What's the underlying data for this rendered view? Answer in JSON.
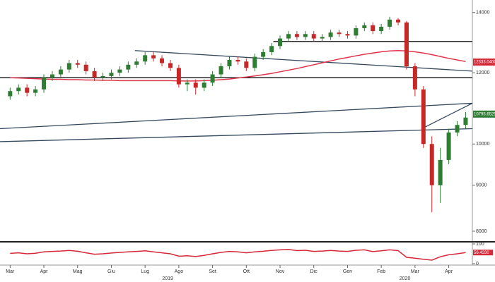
{
  "chart_data": {
    "type": "candlestick",
    "log_scale": true,
    "xlim": [
      -0.3,
      13.7
    ],
    "ylim": [
      7800,
      14300
    ],
    "xticks": [
      {
        "value": 0,
        "label": "Mar"
      },
      {
        "value": 1,
        "label": "Apr"
      },
      {
        "value": 2,
        "label": "Mag"
      },
      {
        "value": 3,
        "label": "Giu"
      },
      {
        "value": 4,
        "label": "Lug"
      },
      {
        "value": 5,
        "label": "Ago"
      },
      {
        "value": 6,
        "label": "Set"
      },
      {
        "value": 7,
        "label": "Ott"
      },
      {
        "value": 8,
        "label": "Nov"
      },
      {
        "value": 9,
        "label": "Dic"
      },
      {
        "value": 10,
        "label": "Gen"
      },
      {
        "value": 11,
        "label": "Feb"
      },
      {
        "value": 12,
        "label": "Mar"
      },
      {
        "value": 13,
        "label": "Apr"
      }
    ],
    "year_labels": [
      {
        "value": 4.67,
        "label": "2019"
      },
      {
        "value": 11.7,
        "label": "2020"
      }
    ],
    "yticks": [
      8000,
      9000,
      10000,
      12000,
      14000
    ],
    "up_color": "#2e7d32",
    "down_color": "#c62828",
    "x": [
      0,
      0.25,
      0.5,
      0.75,
      1,
      1.25,
      1.5,
      1.75,
      2,
      2.25,
      2.5,
      2.75,
      3,
      3.25,
      3.5,
      3.75,
      4,
      4.25,
      4.5,
      4.75,
      5,
      5.25,
      5.5,
      5.75,
      6,
      6.25,
      6.5,
      6.75,
      7,
      7.25,
      7.5,
      7.75,
      8,
      8.25,
      8.5,
      8.75,
      9,
      9.25,
      9.5,
      9.75,
      10,
      10.25,
      10.5,
      10.75,
      11,
      11.25,
      11.5,
      11.75,
      12,
      12.25,
      12.5,
      12.75,
      13,
      13.25,
      13.5
    ],
    "open": [
      11300,
      11450,
      11550,
      11400,
      11500,
      11850,
      11950,
      12100,
      12300,
      12250,
      12050,
      11850,
      11900,
      12000,
      12100,
      12250,
      12350,
      12550,
      12450,
      12300,
      12150,
      11650,
      11700,
      11550,
      11700,
      11950,
      12200,
      12400,
      12350,
      12150,
      12500,
      12650,
      12850,
      13100,
      13250,
      13150,
      13250,
      13100,
      13150,
      13300,
      13250,
      13200,
      13450,
      13550,
      13350,
      13500,
      13750,
      13650,
      12200,
      11500,
      10000,
      9000,
      9600,
      10300,
      10500
    ],
    "high": [
      11550,
      11650,
      11650,
      11600,
      11950,
      12050,
      12200,
      12400,
      12400,
      12350,
      12150,
      12000,
      12100,
      12200,
      12350,
      12450,
      12650,
      12650,
      12550,
      12400,
      12250,
      11800,
      11800,
      11800,
      12050,
      12300,
      12500,
      12500,
      12450,
      12600,
      12750,
      12950,
      13200,
      13350,
      13350,
      13350,
      13350,
      13250,
      13400,
      13400,
      13350,
      13550,
      13650,
      13650,
      13600,
      13850,
      13800,
      13700,
      12300,
      11600,
      10200,
      9900,
      10400,
      10600,
      10850
    ],
    "low": [
      11200,
      11350,
      11300,
      11300,
      11400,
      11750,
      11850,
      12000,
      12150,
      11950,
      11750,
      11750,
      11800,
      11900,
      12000,
      12150,
      12250,
      12350,
      12200,
      12050,
      11550,
      11450,
      11350,
      11450,
      11600,
      11850,
      12100,
      12250,
      12050,
      12050,
      12400,
      12550,
      12750,
      13000,
      13050,
      13050,
      13000,
      13000,
      13050,
      13150,
      13100,
      13100,
      13350,
      13250,
      13250,
      13400,
      13550,
      12100,
      11300,
      9900,
      8400,
      8600,
      9500,
      10200,
      10400
    ],
    "close": [
      11450,
      11550,
      11400,
      11500,
      11850,
      11950,
      12100,
      12300,
      12250,
      12050,
      11850,
      11900,
      12000,
      12100,
      12250,
      12350,
      12550,
      12450,
      12300,
      12150,
      11650,
      11700,
      11550,
      11700,
      11950,
      12200,
      12400,
      12350,
      12150,
      12500,
      12650,
      12850,
      13100,
      13250,
      13150,
      13250,
      13100,
      13150,
      13300,
      13250,
      13200,
      13450,
      13550,
      13350,
      13500,
      13750,
      13650,
      12200,
      11500,
      10000,
      9000,
      9600,
      10300,
      10500,
      10700
    ],
    "ma": {
      "color": "#e0344a",
      "values": [
        11850,
        11840,
        11830,
        11820,
        11810,
        11800,
        11800,
        11790,
        11790,
        11780,
        11780,
        11770,
        11770,
        11760,
        11760,
        11760,
        11760,
        11760,
        11760,
        11760,
        11750,
        11750,
        11750,
        11760,
        11770,
        11790,
        11810,
        11840,
        11870,
        11900,
        11940,
        11980,
        12030,
        12080,
        12130,
        12190,
        12250,
        12310,
        12370,
        12430,
        12480,
        12530,
        12580,
        12620,
        12660,
        12690,
        12700,
        12690,
        12660,
        12620,
        12570,
        12510,
        12450,
        12400,
        12350
      ]
    },
    "trendlines": [
      {
        "color": "#34495e",
        "x": [
          3.7,
          13.7
        ],
        "y": [
          12700,
          12050
        ]
      },
      {
        "color": "#34495e",
        "x": [
          -0.3,
          13.7
        ],
        "y": [
          10400,
          11100
        ]
      },
      {
        "color": "#34495e",
        "x": [
          -0.3,
          13.7
        ],
        "y": [
          10060,
          10400
        ]
      },
      {
        "color": "#34495e",
        "x": [
          12.2,
          13.7
        ],
        "y": [
          10400,
          11100
        ]
      },
      {
        "color": "#111111",
        "x": [
          7.8,
          13.7
        ],
        "y": [
          13000,
          13000
        ]
      },
      {
        "color": "#111111",
        "x": [
          -0.3,
          13.7
        ],
        "y": [
          11850,
          11850
        ]
      }
    ],
    "price_labels": [
      {
        "value": 12333.04,
        "label": "12333.0400",
        "color": "#d62839"
      },
      {
        "value": 10795.6529,
        "label": "10795.6529",
        "color": "#2e7d32"
      }
    ],
    "rsi": {
      "color": "#d62839",
      "ylim": [
        0,
        100
      ],
      "yticks": [
        0,
        100
      ],
      "last_label": {
        "value": 56.433,
        "label": "56.4330"
      },
      "values": [
        52,
        55,
        50,
        53,
        60,
        62,
        64,
        67,
        63,
        55,
        48,
        50,
        54,
        57,
        60,
        62,
        65,
        60,
        55,
        50,
        38,
        40,
        36,
        42,
        50,
        57,
        62,
        60,
        55,
        60,
        63,
        67,
        70,
        72,
        66,
        68,
        62,
        64,
        67,
        64,
        62,
        68,
        70,
        61,
        65,
        70,
        66,
        32,
        28,
        22,
        18,
        35,
        45,
        50,
        56.433
      ]
    }
  }
}
